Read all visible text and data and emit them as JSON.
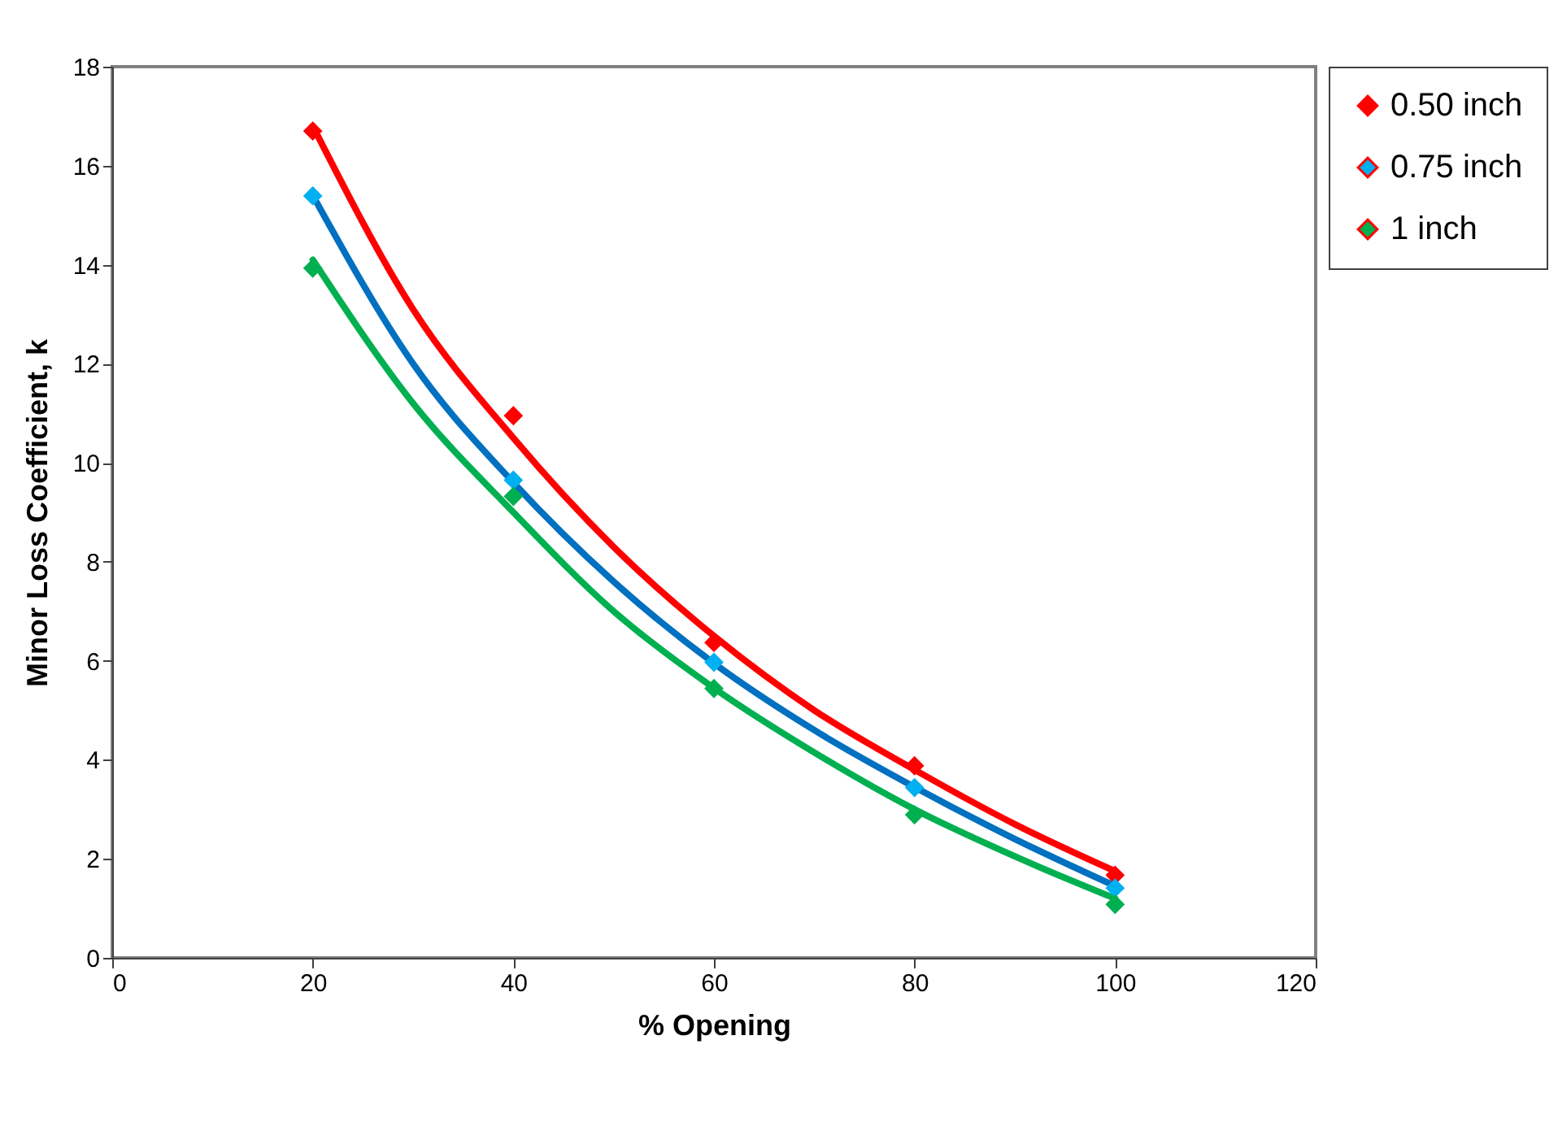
{
  "chart_data": {
    "type": "scatter",
    "xlabel": "% Opening",
    "ylabel": "Minor Loss Coefficient, k",
    "xlim": [
      0,
      120
    ],
    "xticks": [
      0,
      20,
      40,
      60,
      80,
      100,
      120
    ],
    "ylim": [
      0,
      18
    ],
    "yticks": [
      0,
      2,
      4,
      6,
      8,
      10,
      12,
      14,
      16,
      18
    ],
    "marker": "diamond",
    "legend": "right",
    "x": [
      20,
      40,
      60,
      80,
      100
    ],
    "series": [
      {
        "name": "0.50 inch",
        "color": "#ff0000",
        "values": [
          16.7,
          10.95,
          6.37,
          3.88,
          1.67
        ]
      },
      {
        "name": "0.75 inch",
        "color": "#00b0f0",
        "values": [
          15.39,
          9.65,
          5.97,
          3.44,
          1.41
        ]
      },
      {
        "name": "1 inch",
        "color": "#00b050",
        "values": [
          13.93,
          9.32,
          5.44,
          2.89,
          1.08
        ]
      },
      {
        "type": "line",
        "color": "#ff0000",
        "line_style": "solid",
        "marker": "none",
        "x": [
          20,
          30,
          40,
          50,
          60,
          70,
          80,
          90,
          100
        ],
        "values": [
          16.8,
          13.1,
          10.5,
          8.3,
          6.5,
          5.0,
          3.8,
          2.7,
          1.75
        ]
      },
      {
        "type": "line",
        "color": "#0070c0",
        "line_style": "solid",
        "marker": "none",
        "x": [
          20,
          30,
          40,
          50,
          60,
          70,
          80,
          90,
          100
        ],
        "values": [
          15.4,
          12.0,
          9.6,
          7.6,
          5.95,
          4.6,
          3.45,
          2.4,
          1.45
        ]
      },
      {
        "type": "line",
        "color": "#00b050",
        "line_style": "solid",
        "marker": "none",
        "x": [
          20,
          30,
          40,
          50,
          60,
          70,
          80,
          90,
          100
        ],
        "values": [
          14.1,
          11.2,
          9.0,
          7.0,
          5.45,
          4.15,
          3.0,
          2.05,
          1.2
        ]
      }
    ]
  }
}
